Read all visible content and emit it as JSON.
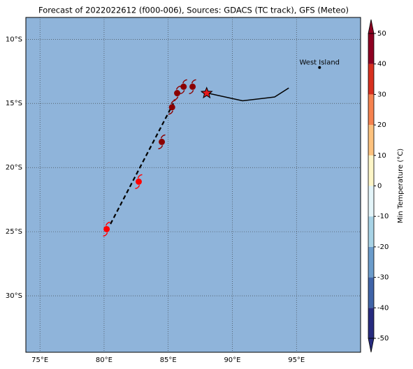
{
  "chart_data": {
    "type": "map",
    "title": "Forecast of 2022022612 (f000-006), Sources: GDACS (TC track), GFS (Meteo)",
    "xlim": [
      73.9,
      100
    ],
    "ylim": [
      -34.4,
      -8.3
    ],
    "xticks": [
      {
        "value": 75,
        "label": "75°E"
      },
      {
        "value": 80,
        "label": "80°E"
      },
      {
        "value": 85,
        "label": "85°E"
      },
      {
        "value": 90,
        "label": "90°E"
      },
      {
        "value": 95,
        "label": "95°E"
      }
    ],
    "yticks": [
      {
        "value": -10,
        "label": "10°S"
      },
      {
        "value": -15,
        "label": "15°S"
      },
      {
        "value": -20,
        "label": "20°S"
      },
      {
        "value": -25,
        "label": "25°S"
      },
      {
        "value": -30,
        "label": "30°S"
      }
    ],
    "grid": true,
    "background": "#8fb4da",
    "track": {
      "x": [
        80.2,
        82.7,
        84.5,
        85.3,
        85.7,
        86.2,
        86.9
      ],
      "y": [
        -24.8,
        -21.1,
        -18.0,
        -15.3,
        -14.2,
        -13.7,
        -13.7
      ],
      "colors": [
        "#ff0000",
        "#ff0000",
        "#8b0000",
        "#8b0000",
        "#8b0000",
        "#8b0000",
        "#8b0000"
      ]
    },
    "forecast_line": {
      "x": [
        80.5,
        85.4
      ],
      "y": [
        -24.4,
        -15.0
      ]
    },
    "meteo_line": {
      "x": [
        87.6,
        90.8,
        93.3,
        94.4
      ],
      "y": [
        -14.1,
        -14.8,
        -14.5,
        -13.8
      ]
    },
    "star": {
      "x": 88.0,
      "y": -14.2,
      "color": "#e31a1c"
    },
    "places": [
      {
        "name": "West Island",
        "x": 96.8,
        "y": -12.2
      }
    ],
    "colorbar": {
      "label": "Min Temperature (°C)",
      "ticks": [
        -50,
        -40,
        -30,
        -20,
        -10,
        0,
        10,
        20,
        30,
        40,
        50
      ],
      "colors": [
        "#272b7f",
        "#4064a8",
        "#6b9ccb",
        "#a8d3e6",
        "#e4f5f9",
        "#fdf6c8",
        "#fdc27e",
        "#f6824f",
        "#d7301f",
        "#8e0021"
      ]
    }
  }
}
